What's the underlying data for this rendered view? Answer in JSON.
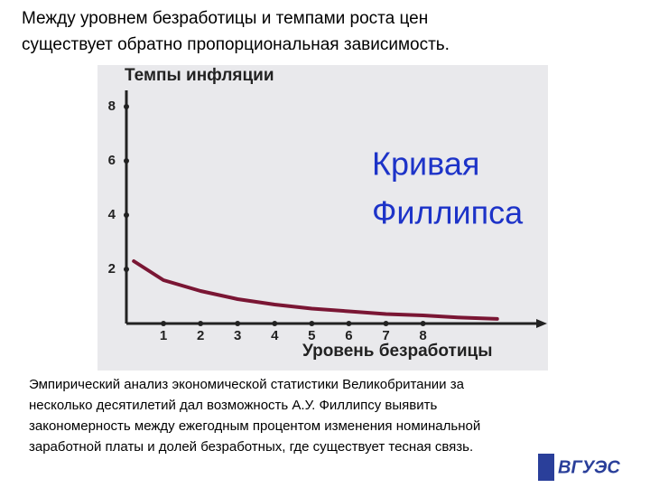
{
  "heading": [
    "Между уровнем безработицы и темпами роста цен",
    "существует обратно пропорциональная зависимость."
  ],
  "chart_data": {
    "type": "line",
    "y_label": "Темпы инфляции",
    "x_label": "Уровень безработицы",
    "annotation": [
      "Кривая",
      "Филлипса"
    ],
    "x": [
      0.2,
      1,
      2,
      3,
      4,
      5,
      6,
      7,
      8,
      9,
      10
    ],
    "series": [
      {
        "color": "#7a1634",
        "values": [
          2.3,
          1.6,
          1.2,
          0.9,
          0.7,
          0.55,
          0.45,
          0.35,
          0.3,
          0.22,
          0.17
        ]
      }
    ],
    "xlim": [
      0,
      11.2
    ],
    "ylim": [
      0,
      8.6
    ],
    "xticks": [
      1,
      2,
      3,
      4,
      5,
      6,
      7,
      8
    ],
    "yticks": [
      2,
      4,
      6,
      8
    ]
  },
  "caption": [
    "Эмпирический анализ экономической статистики Великобритании за",
    "несколько десятилетий дал возможность А.У. Филлипсу выявить",
    "закономерность между ежегодным процентом изменения номинальной",
    "заработной платы и долей безработных, где существует тесная связь."
  ],
  "logo": "ВГУЭС"
}
